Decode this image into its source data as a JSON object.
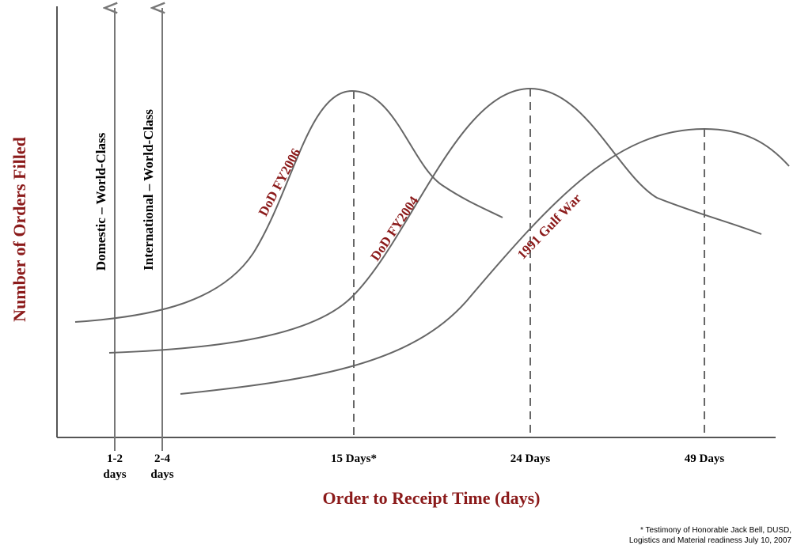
{
  "y_axis_label": "Number of Orders Filled",
  "x_axis_label": "Order to Receipt Time (days)",
  "x_labels": [
    {
      "lines": [
        "1-2",
        "days"
      ]
    },
    {
      "lines": [
        "2-4",
        "days"
      ]
    },
    {
      "lines": [
        "15 Days*"
      ]
    },
    {
      "lines": [
        "24 Days"
      ]
    },
    {
      "lines": [
        "49 Days"
      ]
    }
  ],
  "markers": [
    "Domestic – World-Class",
    "International – World-Class"
  ],
  "curves": [
    "DoD FY2006",
    "DoD FY2004",
    "1991 Gulf War"
  ],
  "footnote": [
    "* Testimony of Honorable Jack Bell, DUSD,",
    "Logistics and Material readiness July 10, 2007"
  ]
}
